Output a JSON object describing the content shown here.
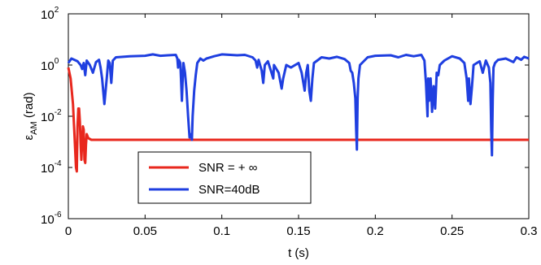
{
  "chart_data": {
    "type": "line",
    "title": "",
    "xlabel": "t (s)",
    "ylabel_base": "ε",
    "ylabel_sub": "AM",
    "ylabel_unit": " (rad)",
    "xlim": [
      0,
      0.3
    ],
    "ylim": [
      1e-06,
      100
    ],
    "yscale": "log",
    "x_ticks": [
      0,
      0.05,
      0.1,
      0.15,
      0.2,
      0.25,
      0.3
    ],
    "x_tick_labels": [
      "0",
      "0.05",
      "0.1",
      "0.15",
      "0.2",
      "0.25",
      "0.3"
    ],
    "y_tick_exponents": [
      -6,
      -4,
      -2,
      0,
      2
    ],
    "y_tick_base": "10",
    "y_tick_exp_labels": [
      "-6",
      "-4",
      "-2",
      "0",
      "2"
    ],
    "grid": false,
    "legend_position": "lower-left",
    "series": [
      {
        "name": "SNR = + ∞",
        "color": "#e8281e",
        "points": [
          [
            0,
            0.8
          ],
          [
            0.0015,
            0.3
          ],
          [
            0.003,
            0.03
          ],
          [
            0.004,
            0.002
          ],
          [
            0.005,
            0.0001
          ],
          [
            0.0055,
            7e-05
          ],
          [
            0.006,
            0.004
          ],
          [
            0.0065,
            0.02
          ],
          [
            0.007,
            0.02
          ],
          [
            0.0075,
            0.006
          ],
          [
            0.008,
            0.0008
          ],
          [
            0.0085,
            0.0002
          ],
          [
            0.009,
            0.001
          ],
          [
            0.0095,
            0.004
          ],
          [
            0.01,
            0.003
          ],
          [
            0.0105,
            0.0002
          ],
          [
            0.011,
            0.00015
          ],
          [
            0.0115,
            0.0008
          ],
          [
            0.012,
            0.002
          ],
          [
            0.013,
            0.0014
          ],
          [
            0.015,
            0.0012
          ],
          [
            0.3,
            0.0012
          ]
        ]
      },
      {
        "name": "SNR=40dB",
        "color": "#1f3fe0",
        "points": [
          [
            0,
            1.2
          ],
          [
            0.002,
            1.8
          ],
          [
            0.004,
            1.6
          ],
          [
            0.006,
            1.4
          ],
          [
            0.008,
            1.0
          ],
          [
            0.009,
            0.7
          ],
          [
            0.01,
            1.2
          ],
          [
            0.011,
            0.4
          ],
          [
            0.012,
            1.5
          ],
          [
            0.014,
            1.0
          ],
          [
            0.016,
            0.5
          ],
          [
            0.018,
            1.3
          ],
          [
            0.02,
            1.6
          ],
          [
            0.021,
            0.8
          ],
          [
            0.022,
            0.3
          ],
          [
            0.0235,
            0.03
          ],
          [
            0.025,
            0.3
          ],
          [
            0.026,
            1.5
          ],
          [
            0.027,
            1.2
          ],
          [
            0.028,
            0.2
          ],
          [
            0.029,
            1.5
          ],
          [
            0.031,
            2.0
          ],
          [
            0.04,
            2.2
          ],
          [
            0.05,
            2.3
          ],
          [
            0.055,
            2.6
          ],
          [
            0.06,
            2.3
          ],
          [
            0.065,
            2.4
          ],
          [
            0.07,
            2.5
          ],
          [
            0.071,
            1.8
          ],
          [
            0.0715,
            0.8
          ],
          [
            0.072,
            1.6
          ],
          [
            0.073,
            1.2
          ],
          [
            0.0735,
            0.2
          ],
          [
            0.074,
            0.04
          ],
          [
            0.0745,
            0.3
          ],
          [
            0.075,
            1.2
          ],
          [
            0.076,
            0.5
          ],
          [
            0.077,
            0.1
          ],
          [
            0.078,
            0.01
          ],
          [
            0.079,
            0.0015
          ],
          [
            0.08,
            0.002
          ],
          [
            0.0805,
            0.0012
          ],
          [
            0.081,
            0.01
          ],
          [
            0.082,
            0.1
          ],
          [
            0.083,
            0.4
          ],
          [
            0.084,
            1.2
          ],
          [
            0.086,
            1.8
          ],
          [
            0.088,
            1.5
          ],
          [
            0.09,
            1.8
          ],
          [
            0.095,
            2.2
          ],
          [
            0.1,
            2.6
          ],
          [
            0.11,
            2.4
          ],
          [
            0.115,
            2.5
          ],
          [
            0.12,
            2.0
          ],
          [
            0.122,
            1.5
          ],
          [
            0.123,
            0.8
          ],
          [
            0.124,
            1.6
          ],
          [
            0.126,
            0.6
          ],
          [
            0.127,
            0.2
          ],
          [
            0.128,
            1.0
          ],
          [
            0.13,
            1.4
          ],
          [
            0.132,
            0.6
          ],
          [
            0.1335,
            0.3
          ],
          [
            0.134,
            1.0
          ],
          [
            0.137,
            0.5
          ],
          [
            0.139,
            0.12
          ],
          [
            0.14,
            0.3
          ],
          [
            0.142,
            1.0
          ],
          [
            0.145,
            0.8
          ],
          [
            0.15,
            1.2
          ],
          [
            0.152,
            0.5
          ],
          [
            0.154,
            0.1
          ],
          [
            0.155,
            0.5
          ],
          [
            0.156,
            1.0
          ],
          [
            0.157,
            0.1
          ],
          [
            0.158,
            0.04
          ],
          [
            0.159,
            0.3
          ],
          [
            0.16,
            1.2
          ],
          [
            0.165,
            2.0
          ],
          [
            0.17,
            1.8
          ],
          [
            0.175,
            2.1
          ],
          [
            0.18,
            1.7
          ],
          [
            0.183,
            1.2
          ],
          [
            0.184,
            0.6
          ],
          [
            0.185,
            0.5
          ],
          [
            0.186,
            0.2
          ],
          [
            0.187,
            0.05
          ],
          [
            0.1875,
            0.003
          ],
          [
            0.188,
            0.0005
          ],
          [
            0.1885,
            0.05
          ],
          [
            0.189,
            0.3
          ],
          [
            0.19,
            1.0
          ],
          [
            0.195,
            2.0
          ],
          [
            0.2,
            2.3
          ],
          [
            0.21,
            2.4
          ],
          [
            0.215,
            2.0
          ],
          [
            0.22,
            2.5
          ],
          [
            0.225,
            2.2
          ],
          [
            0.23,
            2.5
          ],
          [
            0.232,
            1.5
          ],
          [
            0.233,
            0.2
          ],
          [
            0.234,
            0.01
          ],
          [
            0.2345,
            0.3
          ],
          [
            0.235,
            0.04
          ],
          [
            0.236,
            0.3
          ],
          [
            0.237,
            0.015
          ],
          [
            0.238,
            0.15
          ],
          [
            0.239,
            0.02
          ],
          [
            0.24,
            0.5
          ],
          [
            0.241,
            0.4
          ],
          [
            0.242,
            1.0
          ],
          [
            0.245,
            1.5
          ],
          [
            0.25,
            2.2
          ],
          [
            0.255,
            1.8
          ],
          [
            0.258,
            1.2
          ],
          [
            0.2595,
            0.3
          ],
          [
            0.2605,
            0.04
          ],
          [
            0.261,
            0.3
          ],
          [
            0.262,
            0.03
          ],
          [
            0.263,
            0.15
          ],
          [
            0.264,
            1.0
          ],
          [
            0.268,
            1.4
          ],
          [
            0.27,
            0.5
          ],
          [
            0.272,
            1.5
          ],
          [
            0.274,
            0.8
          ],
          [
            0.275,
            0.2
          ],
          [
            0.2755,
            0.003
          ],
          [
            0.276,
            0.0003
          ],
          [
            0.2765,
            0.05
          ],
          [
            0.277,
            0.8
          ],
          [
            0.278,
            1.2
          ],
          [
            0.28,
            1.6
          ],
          [
            0.285,
            1.8
          ],
          [
            0.29,
            1.3
          ],
          [
            0.292,
            2.0
          ],
          [
            0.295,
            1.6
          ],
          [
            0.297,
            2.1
          ],
          [
            0.3,
            1.8
          ]
        ]
      }
    ]
  }
}
